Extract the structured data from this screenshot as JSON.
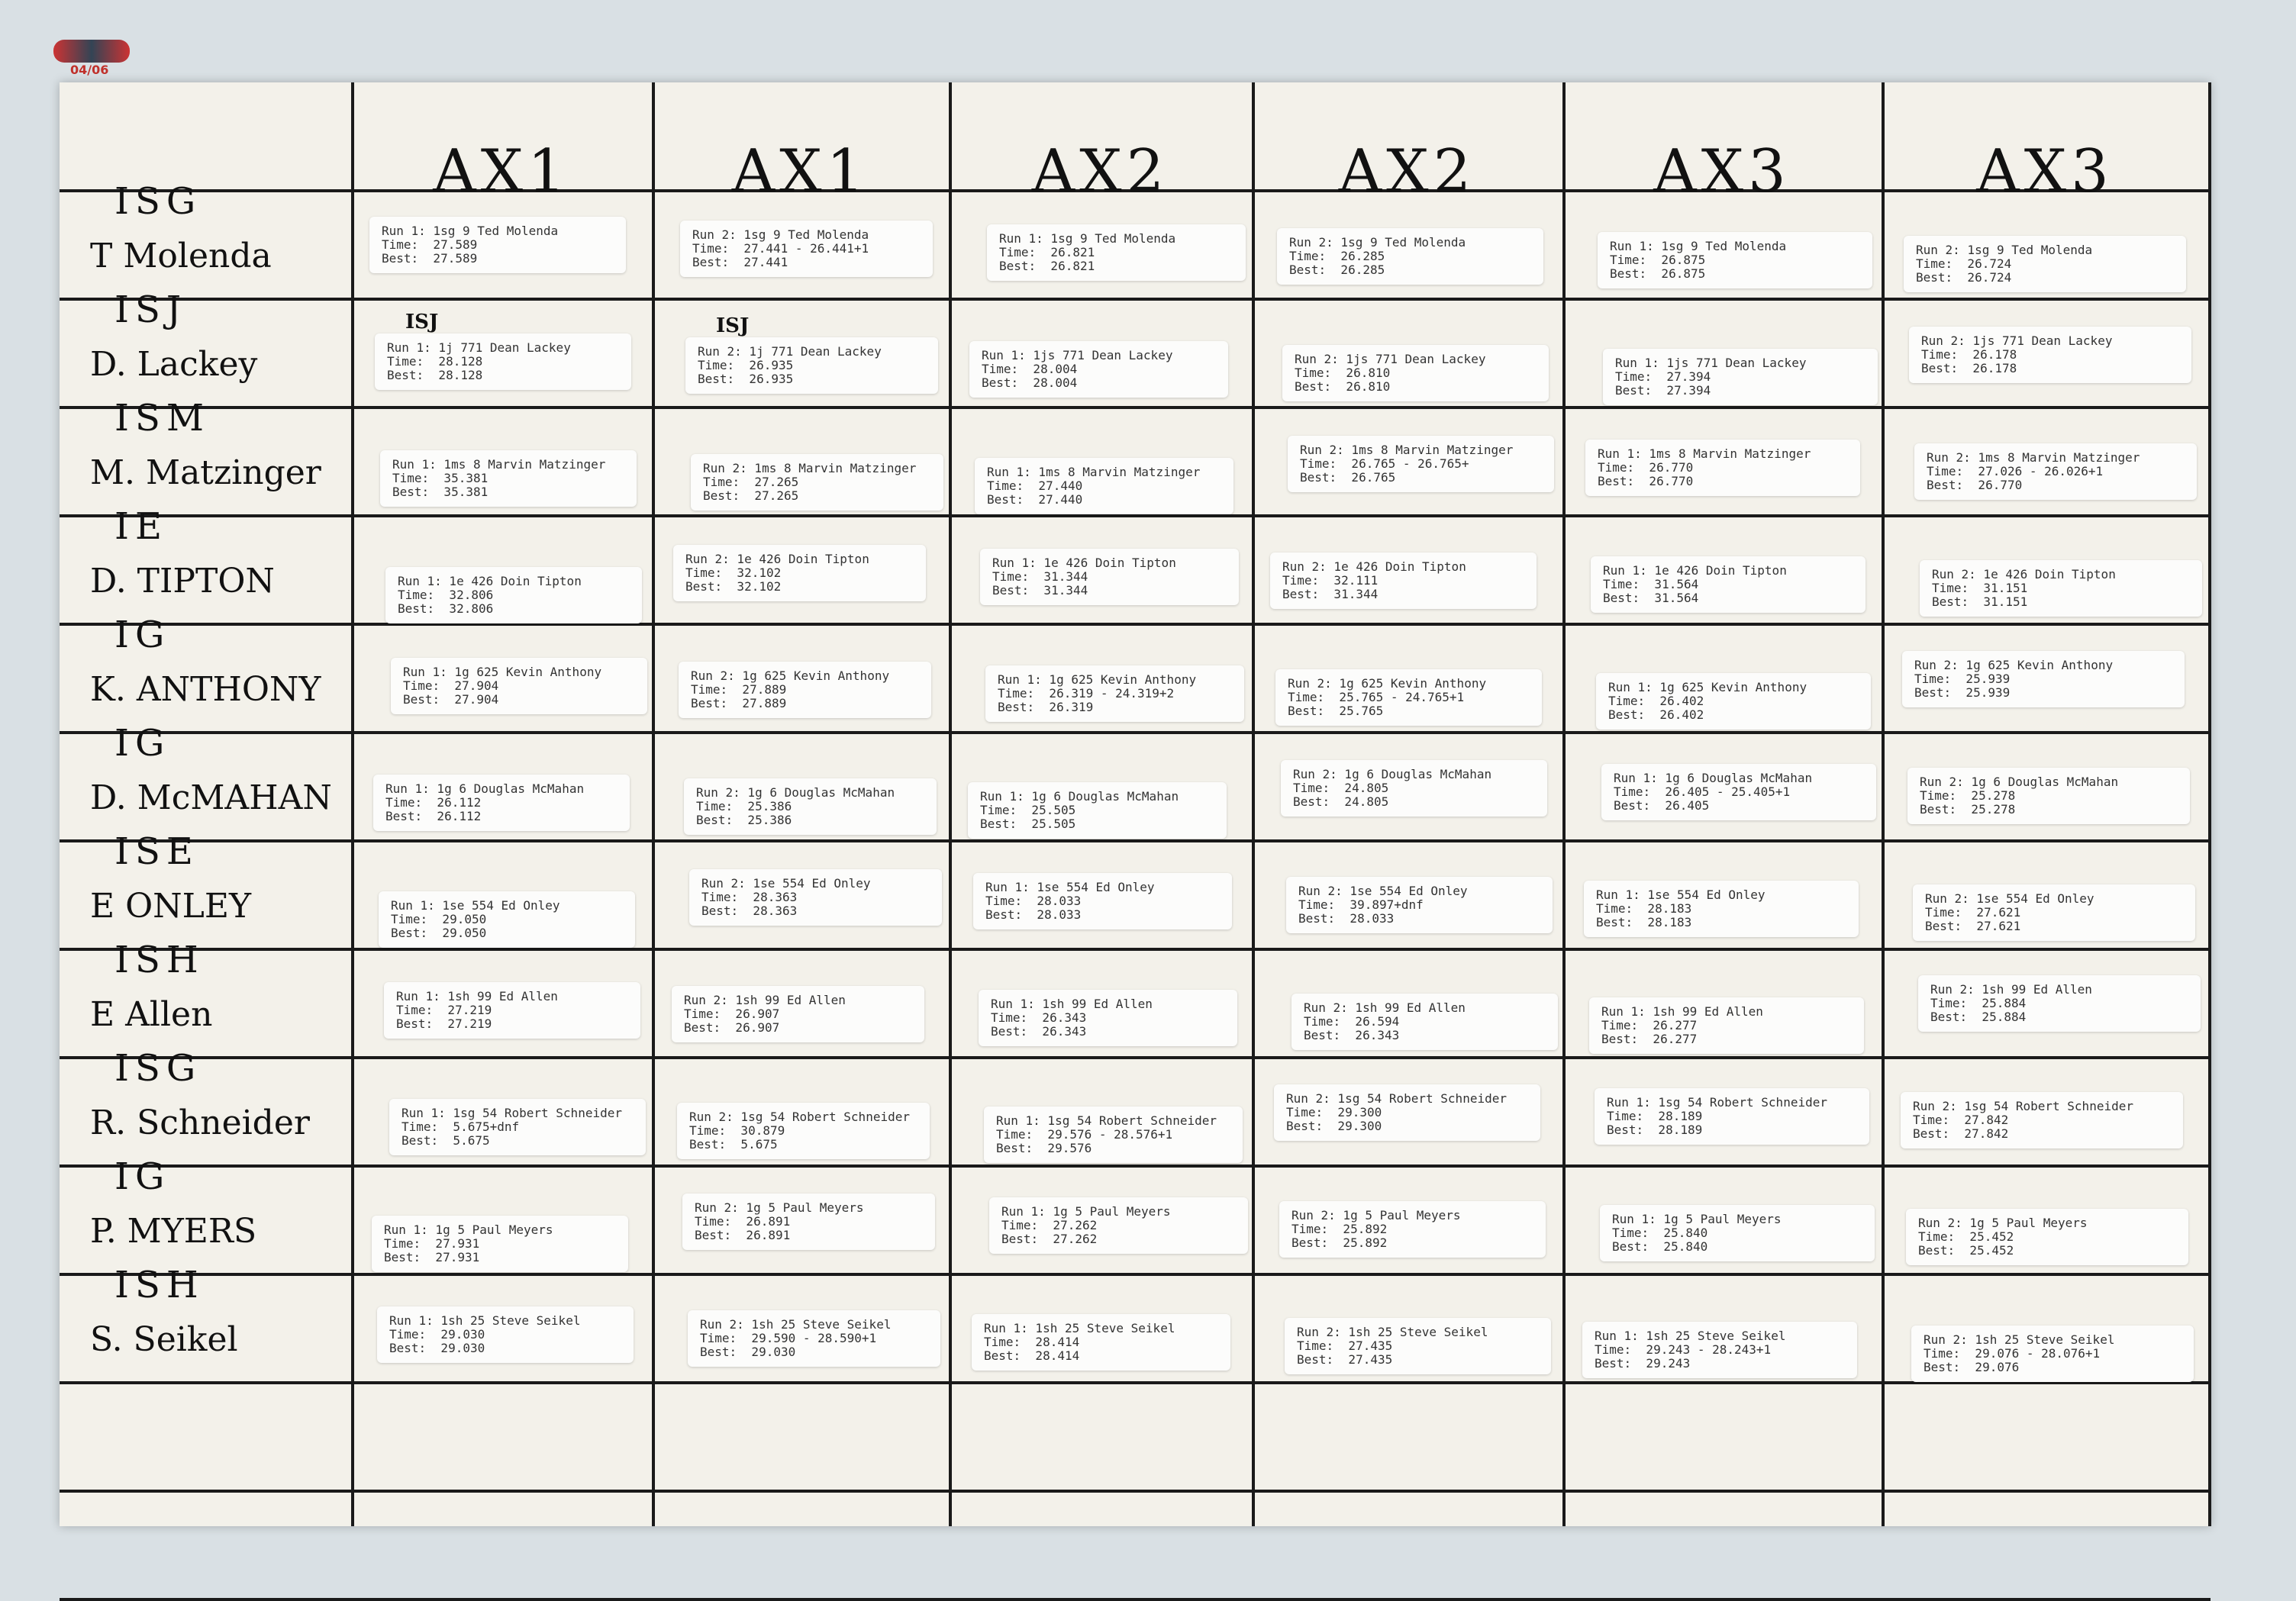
{
  "stamp": "04/06",
  "headers": [
    "AX1",
    "AX1",
    "AX2",
    "AX2",
    "AX3",
    "AX3"
  ],
  "rows": [
    {
      "class": "ISG",
      "name": "T Molenda",
      "cells": [
        {
          "run": "Run 1: 1sg 9 Ted Molenda",
          "time": "Time:  27.589",
          "best": "Best:  27.589"
        },
        {
          "run": "Run 2: 1sg 9 Ted Molenda",
          "time": "Time:  27.441 - 26.441+1",
          "best": "Best:  27.441"
        },
        {
          "run": "Run 1: 1sg 9 Ted Molenda",
          "time": "Time:  26.821",
          "best": "Best:  26.821"
        },
        {
          "run": "Run 2: 1sg 9 Ted Molenda",
          "time": "Time:  26.285",
          "best": "Best:  26.285"
        },
        {
          "run": "Run 1: 1sg 9 Ted Molenda",
          "time": "Time:  26.875",
          "best": "Best:  26.875"
        },
        {
          "run": "Run 2: 1sg 9 Ted Molenda",
          "time": "Time:  26.724",
          "best": "Best:  26.724"
        }
      ]
    },
    {
      "class": "ISJ",
      "name": "D. Lackey",
      "cells": [
        {
          "note": "ISJ",
          "run": "Run 1: 1j 771 Dean Lackey",
          "time": "Time:  28.128",
          "best": "Best:  28.128"
        },
        {
          "note": "ISJ",
          "run": "Run 2: 1j 771 Dean Lackey",
          "time": "Time:  26.935",
          "best": "Best:  26.935"
        },
        {
          "run": "Run 1: 1js 771 Dean Lackey",
          "time": "Time:  28.004",
          "best": "Best:  28.004"
        },
        {
          "run": "Run 2: 1js 771 Dean Lackey",
          "time": "Time:  26.810",
          "best": "Best:  26.810"
        },
        {
          "run": "Run 1: 1js 771 Dean Lackey",
          "time": "Time:  27.394",
          "best": "Best:  27.394"
        },
        {
          "run": "Run 2: 1js 771 Dean Lackey",
          "time": "Time:  26.178",
          "best": "Best:  26.178"
        }
      ]
    },
    {
      "class": "ISM",
      "name": "M. Matzinger",
      "cells": [
        {
          "run": "Run 1: 1ms 8 Marvin Matzinger",
          "time": "Time:  35.381",
          "best": "Best:  35.381"
        },
        {
          "run": "Run 2: 1ms 8 Marvin Matzinger",
          "time": "Time:  27.265",
          "best": "Best:  27.265"
        },
        {
          "run": "Run 1: 1ms 8 Marvin Matzinger",
          "time": "Time:  27.440",
          "best": "Best:  27.440"
        },
        {
          "run": "Run 2: 1ms 8 Marvin Matzinger",
          "time": "Time:  26.765 - 26.765+",
          "best": "Best:  26.765"
        },
        {
          "run": "Run 1: 1ms 8 Marvin Matzinger",
          "time": "Time:  26.770",
          "best": "Best:  26.770"
        },
        {
          "run": "Run 2: 1ms 8 Marvin Matzinger",
          "time": "Time:  27.026 - 26.026+1",
          "best": "Best:  26.770"
        }
      ]
    },
    {
      "class": "IE",
      "name": "D. TIPTON",
      "cells": [
        {
          "run": "Run 1: 1e 426 Doin Tipton",
          "time": "Time:  32.806",
          "best": "Best:  32.806"
        },
        {
          "run": "Run 2: 1e 426 Doin Tipton",
          "time": "Time:  32.102",
          "best": "Best:  32.102"
        },
        {
          "run": "Run 1: 1e 426 Doin Tipton",
          "time": "Time:  31.344",
          "best": "Best:  31.344"
        },
        {
          "run": "Run 2: 1e 426 Doin Tipton",
          "time": "Time:  32.111",
          "best": "Best:  31.344"
        },
        {
          "run": "Run 1: 1e 426 Doin Tipton",
          "time": "Time:  31.564",
          "best": "Best:  31.564"
        },
        {
          "run": "Run 2: 1e 426 Doin Tipton",
          "time": "Time:  31.151",
          "best": "Best:  31.151"
        }
      ]
    },
    {
      "class": "IG",
      "name": "K. ANTHONY",
      "cells": [
        {
          "run": "Run 1: 1g 625 Kevin Anthony",
          "time": "Time:  27.904",
          "best": "Best:  27.904"
        },
        {
          "run": "Run 2: 1g 625 Kevin Anthony",
          "time": "Time:  27.889",
          "best": "Best:  27.889"
        },
        {
          "run": "Run 1: 1g 625 Kevin Anthony",
          "time": "Time:  26.319 - 24.319+2",
          "best": "Best:  26.319"
        },
        {
          "run": "Run 2: 1g 625 Kevin Anthony",
          "time": "Time:  25.765 - 24.765+1",
          "best": "Best:  25.765"
        },
        {
          "run": "Run 1: 1g 625 Kevin Anthony",
          "time": "Time:  26.402",
          "best": "Best:  26.402"
        },
        {
          "run": "Run 2: 1g 625 Kevin Anthony",
          "time": "Time:  25.939",
          "best": "Best:  25.939"
        }
      ]
    },
    {
      "class": "IG",
      "name": "D. McMAHAN",
      "cells": [
        {
          "run": "Run 1: 1g 6 Douglas McMahan",
          "time": "Time:  26.112",
          "best": "Best:  26.112"
        },
        {
          "run": "Run 2: 1g 6 Douglas McMahan",
          "time": "Time:  25.386",
          "best": "Best:  25.386"
        },
        {
          "run": "Run 1: 1g 6 Douglas McMahan",
          "time": "Time:  25.505",
          "best": "Best:  25.505"
        },
        {
          "run": "Run 2: 1g 6 Douglas McMahan",
          "time": "Time:  24.805",
          "best": "Best:  24.805"
        },
        {
          "run": "Run 1: 1g 6 Douglas McMahan",
          "time": "Time:  26.405 - 25.405+1",
          "best": "Best:  26.405"
        },
        {
          "run": "Run 2: 1g 6 Douglas McMahan",
          "time": "Time:  25.278",
          "best": "Best:  25.278"
        }
      ]
    },
    {
      "class": "ISE",
      "name": "E ONLEY",
      "cells": [
        {
          "run": "Run 1: 1se 554 Ed Onley",
          "time": "Time:  29.050",
          "best": "Best:  29.050"
        },
        {
          "run": "Run 2: 1se 554 Ed Onley",
          "time": "Time:  28.363",
          "best": "Best:  28.363"
        },
        {
          "run": "Run 1: 1se 554 Ed Onley",
          "time": "Time:  28.033",
          "best": "Best:  28.033"
        },
        {
          "run": "Run 2: 1se 554 Ed Onley",
          "time": "Time:  39.897+dnf",
          "best": "Best:  28.033"
        },
        {
          "run": "Run 1: 1se 554 Ed Onley",
          "time": "Time:  28.183",
          "best": "Best:  28.183"
        },
        {
          "run": "Run 2: 1se 554 Ed Onley",
          "time": "Time:  27.621",
          "best": "Best:  27.621"
        }
      ]
    },
    {
      "class": "ISH",
      "name": "E Allen",
      "cells": [
        {
          "run": "Run 1: 1sh 99 Ed Allen",
          "time": "Time:  27.219",
          "best": "Best:  27.219"
        },
        {
          "run": "Run 2: 1sh 99 Ed Allen",
          "time": "Time:  26.907",
          "best": "Best:  26.907"
        },
        {
          "run": "Run 1: 1sh 99 Ed Allen",
          "time": "Time:  26.343",
          "best": "Best:  26.343"
        },
        {
          "run": "Run 2: 1sh 99 Ed Allen",
          "time": "Time:  26.594",
          "best": "Best:  26.343"
        },
        {
          "run": "Run 1: 1sh 99 Ed Allen",
          "time": "Time:  26.277",
          "best": "Best:  26.277"
        },
        {
          "run": "Run 2: 1sh 99 Ed Allen",
          "time": "Time:  25.884",
          "best": "Best:  25.884"
        }
      ]
    },
    {
      "class": "ISG",
      "name": "R. Schneider",
      "cells": [
        {
          "run": "Run 1: 1sg 54 Robert Schneider",
          "time": "Time:  5.675+dnf",
          "best": "Best:  5.675"
        },
        {
          "run": "Run 2: 1sg 54 Robert Schneider",
          "time": "Time:  30.879",
          "best": "Best:  5.675"
        },
        {
          "run": "Run 1: 1sg 54 Robert Schneider",
          "time": "Time:  29.576 - 28.576+1",
          "best": "Best:  29.576"
        },
        {
          "run": "Run 2: 1sg 54 Robert Schneider",
          "time": "Time:  29.300",
          "best": "Best:  29.300"
        },
        {
          "run": "Run 1: 1sg 54 Robert Schneider",
          "time": "Time:  28.189",
          "best": "Best:  28.189"
        },
        {
          "run": "Run 2: 1sg 54 Robert Schneider",
          "time": "Time:  27.842",
          "best": "Best:  27.842"
        }
      ]
    },
    {
      "class": "IG",
      "name": "P. MYERS",
      "cells": [
        {
          "run": "Run 1: 1g 5 Paul Meyers",
          "time": "Time:  27.931",
          "best": "Best:  27.931"
        },
        {
          "run": "Run 2: 1g 5 Paul Meyers",
          "time": "Time:  26.891",
          "best": "Best:  26.891"
        },
        {
          "run": "Run 1: 1g 5 Paul Meyers",
          "time": "Time:  27.262",
          "best": "Best:  27.262"
        },
        {
          "run": "Run 2: 1g 5 Paul Meyers",
          "time": "Time:  25.892",
          "best": "Best:  25.892"
        },
        {
          "run": "Run 1: 1g 5 Paul Meyers",
          "time": "Time:  25.840",
          "best": "Best:  25.840"
        },
        {
          "run": "Run 2: 1g 5 Paul Meyers",
          "time": "Time:  25.452",
          "best": "Best:  25.452"
        }
      ]
    },
    {
      "class": "ISH",
      "name": "S. Seikel",
      "cells": [
        {
          "run": "Run 1: 1sh 25 Steve Seikel",
          "time": "Time:  29.030",
          "best": "Best:  29.030"
        },
        {
          "run": "Run 2: 1sh 25 Steve Seikel",
          "time": "Time:  29.590 - 28.590+1",
          "best": "Best:  29.030"
        },
        {
          "run": "Run 1: 1sh 25 Steve Seikel",
          "time": "Time:  28.414",
          "best": "Best:  28.414"
        },
        {
          "run": "Run 2: 1sh 25 Steve Seikel",
          "time": "Time:  27.435",
          "best": "Best:  27.435"
        },
        {
          "run": "Run 1: 1sh 25 Steve Seikel",
          "time": "Time:  29.243 - 28.243+1",
          "best": "Best:  29.243"
        },
        {
          "run": "Run 2: 1sh 25 Steve Seikel",
          "time": "Time:  29.076 - 28.076+1",
          "best": "Best:  29.076"
        }
      ]
    }
  ]
}
